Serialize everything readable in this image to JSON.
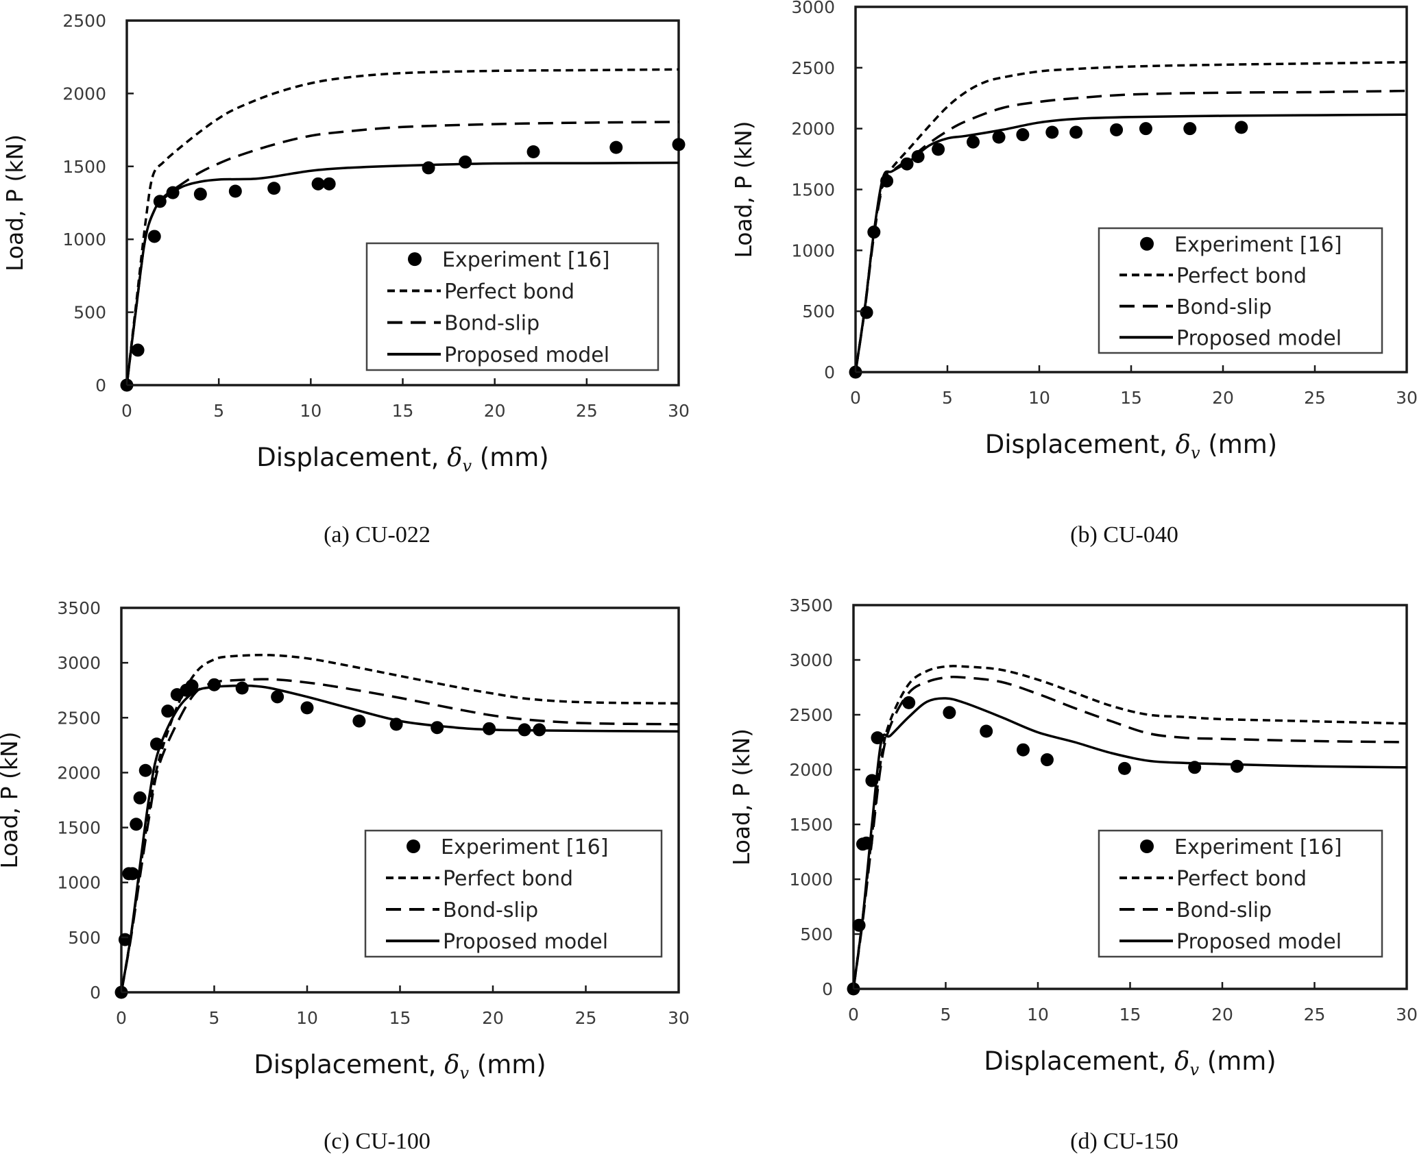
{
  "figure": {
    "legend_labels": [
      "Experiment [16]",
      "Perfect bond",
      "Bond-slip",
      "Proposed model"
    ],
    "x_axis_title_prefix": "Displacement, ",
    "x_axis_symbol": "δ",
    "x_axis_subscript": "v",
    "x_axis_unit": " (mm)",
    "y_axis_title": "Load, P (kN)"
  },
  "chart_data": [
    {
      "type": "line",
      "panel": "a",
      "caption": "(a) CU-022",
      "xlabel": "Displacement, δv (mm)",
      "ylabel": "Load, P (kN)",
      "xlim": [
        0,
        30
      ],
      "ylim": [
        0,
        2500
      ],
      "xticks": [
        0,
        5,
        10,
        15,
        20,
        25,
        30
      ],
      "yticks": [
        0,
        500,
        1000,
        1500,
        2000,
        2500
      ],
      "legend_position": "bottom-right",
      "grid": false,
      "series": [
        {
          "name": "Experiment [16]",
          "style": "markers",
          "x": [
            0,
            0.6,
            1.5,
            1.8,
            2.5,
            4.0,
            5.9,
            8.0,
            10.4,
            11.0,
            16.4,
            18.4,
            22.1,
            26.6,
            30.0
          ],
          "y": [
            0,
            240,
            1020,
            1260,
            1320,
            1310,
            1330,
            1350,
            1380,
            1380,
            1490,
            1530,
            1600,
            1630,
            1650
          ]
        },
        {
          "name": "Perfect bond",
          "style": "short-dash",
          "x": [
            0,
            0.5,
            1.0,
            1.4,
            2.0,
            3.0,
            4.0,
            5.0,
            6.0,
            8.0,
            10.0,
            12.0,
            15.0,
            20.0,
            25.0,
            30.0
          ],
          "y": [
            0,
            550,
            1100,
            1430,
            1530,
            1640,
            1740,
            1830,
            1900,
            2000,
            2070,
            2110,
            2140,
            2155,
            2160,
            2165
          ]
        },
        {
          "name": "Bond-slip",
          "style": "long-dash",
          "x": [
            0,
            0.5,
            1.0,
            1.5,
            2.0,
            3.0,
            4.0,
            5.0,
            6.0,
            8.0,
            10.0,
            12.0,
            15.0,
            20.0,
            25.0,
            30.0
          ],
          "y": [
            0,
            520,
            1000,
            1200,
            1290,
            1380,
            1460,
            1520,
            1570,
            1650,
            1710,
            1740,
            1770,
            1790,
            1800,
            1805
          ]
        },
        {
          "name": "Proposed model",
          "style": "solid",
          "x": [
            0,
            0.5,
            1.0,
            1.5,
            2.0,
            3.0,
            4.0,
            5.0,
            6.0,
            7.0,
            8.0,
            10.0,
            12.0,
            15.0,
            20.0,
            25.0,
            30.0
          ],
          "y": [
            0,
            520,
            1000,
            1200,
            1280,
            1360,
            1395,
            1410,
            1412,
            1415,
            1430,
            1470,
            1490,
            1505,
            1520,
            1522,
            1525
          ]
        }
      ]
    },
    {
      "type": "line",
      "panel": "b",
      "caption": "(b) CU-040",
      "xlabel": "Displacement, δv (mm)",
      "ylabel": "Load, P (kN)",
      "xlim": [
        0,
        30
      ],
      "ylim": [
        0,
        3000
      ],
      "xticks": [
        0,
        5,
        10,
        15,
        20,
        25,
        30
      ],
      "yticks": [
        0,
        500,
        1000,
        1500,
        2000,
        2500,
        3000
      ],
      "legend_position": "bottom-right",
      "grid": false,
      "series": [
        {
          "name": "Experiment [16]",
          "style": "markers",
          "x": [
            0,
            0.6,
            1.0,
            1.7,
            2.8,
            3.4,
            4.5,
            6.4,
            7.8,
            9.1,
            10.7,
            12.0,
            14.2,
            15.8,
            18.2,
            21.0
          ],
          "y": [
            0,
            490,
            1150,
            1570,
            1710,
            1770,
            1830,
            1890,
            1930,
            1950,
            1970,
            1970,
            1990,
            2000,
            2000,
            2010
          ]
        },
        {
          "name": "Perfect bond",
          "style": "short-dash",
          "x": [
            0,
            0.5,
            1.0,
            1.5,
            2.0,
            3.0,
            4.0,
            5.0,
            6.0,
            7.0,
            8.0,
            10.0,
            12.0,
            15.0,
            20.0,
            25.0,
            30.0
          ],
          "y": [
            0,
            520,
            1150,
            1560,
            1680,
            1850,
            2020,
            2180,
            2300,
            2380,
            2420,
            2470,
            2490,
            2510,
            2525,
            2535,
            2545
          ]
        },
        {
          "name": "Bond-slip",
          "style": "long-dash",
          "x": [
            0,
            0.5,
            1.0,
            1.5,
            2.0,
            3.0,
            4.0,
            5.0,
            6.0,
            8.0,
            10.0,
            12.0,
            15.0,
            20.0,
            25.0,
            30.0
          ],
          "y": [
            0,
            510,
            1120,
            1540,
            1650,
            1760,
            1880,
            1980,
            2060,
            2170,
            2220,
            2250,
            2280,
            2295,
            2300,
            2310
          ]
        },
        {
          "name": "Proposed model",
          "style": "solid",
          "x": [
            0,
            0.5,
            1.0,
            1.5,
            2.0,
            3.0,
            4.0,
            5.0,
            6.0,
            8.0,
            10.0,
            12.0,
            15.0,
            20.0,
            25.0,
            30.0
          ],
          "y": [
            0,
            520,
            1150,
            1600,
            1650,
            1740,
            1860,
            1920,
            1940,
            1990,
            2050,
            2080,
            2095,
            2105,
            2110,
            2115
          ]
        }
      ]
    },
    {
      "type": "line",
      "panel": "c",
      "caption": "(c) CU-100",
      "xlabel": "Displacement, δv (mm)",
      "ylabel": "Load, P (kN)",
      "xlim": [
        0,
        30
      ],
      "ylim": [
        0,
        3500
      ],
      "xticks": [
        0,
        5,
        10,
        15,
        20,
        25,
        30
      ],
      "yticks": [
        0,
        500,
        1000,
        1500,
        2000,
        2500,
        3000,
        3500
      ],
      "legend_position": "bottom-right",
      "grid": false,
      "series": [
        {
          "name": "Experiment [16]",
          "style": "markers",
          "x": [
            0,
            0.2,
            0.4,
            0.6,
            0.8,
            1.0,
            1.3,
            1.9,
            2.5,
            3.0,
            3.5,
            3.8,
            5.0,
            6.5,
            8.4,
            10.0,
            12.8,
            14.8,
            17.0,
            19.8,
            21.7,
            22.5
          ],
          "y": [
            0,
            480,
            1080,
            1080,
            1530,
            1770,
            2020,
            2260,
            2560,
            2710,
            2750,
            2790,
            2800,
            2770,
            2690,
            2590,
            2470,
            2440,
            2410,
            2400,
            2390,
            2390
          ]
        },
        {
          "name": "Perfect bond",
          "style": "short-dash",
          "x": [
            0,
            0.5,
            1.0,
            1.5,
            2.0,
            3.0,
            4.0,
            5.0,
            6.0,
            8.0,
            10.0,
            12.0,
            15.0,
            18.0,
            20.0,
            22.0,
            25.0,
            30.0
          ],
          "y": [
            0,
            500,
            1100,
            1650,
            2100,
            2600,
            2910,
            3030,
            3060,
            3070,
            3040,
            2980,
            2880,
            2780,
            2720,
            2670,
            2640,
            2630
          ]
        },
        {
          "name": "Bond-slip",
          "style": "long-dash",
          "x": [
            0,
            0.5,
            1.0,
            1.5,
            2.0,
            3.0,
            4.0,
            5.0,
            6.0,
            8.0,
            10.0,
            12.0,
            15.0,
            18.0,
            20.0,
            22.0,
            25.0,
            30.0
          ],
          "y": [
            0,
            480,
            1050,
            1600,
            2050,
            2450,
            2730,
            2820,
            2840,
            2850,
            2820,
            2770,
            2680,
            2580,
            2520,
            2480,
            2450,
            2440
          ]
        },
        {
          "name": "Proposed model",
          "style": "solid",
          "x": [
            0,
            0.5,
            1.0,
            1.5,
            2.0,
            3.0,
            4.0,
            5.0,
            6.0,
            7.0,
            8.0,
            10.0,
            12.0,
            15.0,
            18.0,
            20.0,
            22.0,
            25.0,
            30.0
          ],
          "y": [
            0,
            500,
            1150,
            1780,
            2200,
            2570,
            2740,
            2780,
            2790,
            2790,
            2770,
            2690,
            2600,
            2470,
            2410,
            2390,
            2385,
            2380,
            2375
          ]
        }
      ]
    },
    {
      "type": "line",
      "panel": "d",
      "caption": "(d) CU-150",
      "xlabel": "Displacement, δv (mm)",
      "ylabel": "Load, P (kN)",
      "xlim": [
        0,
        30
      ],
      "ylim": [
        0,
        3500
      ],
      "xticks": [
        0,
        5,
        10,
        15,
        20,
        25,
        30
      ],
      "yticks": [
        0,
        500,
        1000,
        1500,
        2000,
        2500,
        3000,
        3500
      ],
      "legend_position": "bottom-right",
      "grid": false,
      "series": [
        {
          "name": "Experiment [16]",
          "style": "markers",
          "x": [
            0,
            0.3,
            0.5,
            0.7,
            1.0,
            1.3,
            3.0,
            5.2,
            7.2,
            9.2,
            10.5,
            14.7,
            18.5,
            20.8
          ],
          "y": [
            0,
            580,
            1320,
            1330,
            1900,
            2290,
            2610,
            2520,
            2350,
            2180,
            2090,
            2010,
            2020,
            2030
          ]
        },
        {
          "name": "Perfect bond",
          "style": "short-dash",
          "x": [
            0,
            0.5,
            1.0,
            1.5,
            2.0,
            3.0,
            4.0,
            5.0,
            6.0,
            8.0,
            10.0,
            12.0,
            14.0,
            16.0,
            18.0,
            20.0,
            25.0,
            30.0
          ],
          "y": [
            0,
            650,
            1400,
            2100,
            2450,
            2780,
            2900,
            2940,
            2940,
            2910,
            2820,
            2700,
            2580,
            2500,
            2480,
            2460,
            2440,
            2420
          ]
        },
        {
          "name": "Bond-slip",
          "style": "long-dash",
          "x": [
            0,
            0.5,
            1.0,
            1.5,
            2.0,
            3.0,
            4.0,
            5.0,
            6.0,
            8.0,
            10.0,
            12.0,
            14.0,
            16.0,
            18.0,
            20.0,
            25.0,
            30.0
          ],
          "y": [
            0,
            620,
            1350,
            2050,
            2400,
            2700,
            2800,
            2840,
            2840,
            2800,
            2690,
            2560,
            2440,
            2330,
            2290,
            2280,
            2260,
            2250
          ]
        },
        {
          "name": "Proposed model",
          "style": "solid",
          "x": [
            0,
            0.5,
            1.0,
            1.5,
            2.0,
            3.0,
            4.0,
            5.0,
            6.0,
            8.0,
            10.0,
            12.0,
            14.0,
            16.0,
            18.0,
            20.0,
            25.0,
            30.0
          ],
          "y": [
            0,
            650,
            1500,
            2250,
            2310,
            2480,
            2620,
            2650,
            2610,
            2480,
            2340,
            2250,
            2150,
            2080,
            2060,
            2050,
            2030,
            2020
          ]
        }
      ]
    }
  ]
}
